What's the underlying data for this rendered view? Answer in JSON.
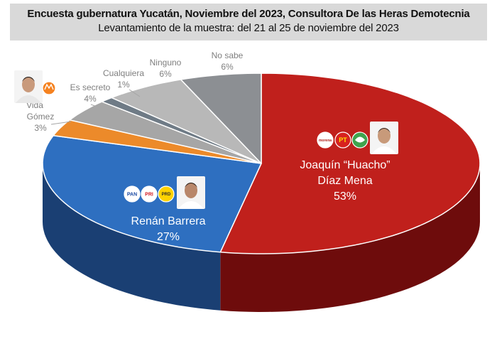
{
  "header": {
    "title": "Encuesta gubernatura Yucatán, Noviembre del 2023, Consultora De las Heras Demotecnia",
    "subtitle": "Levantamiento de la muestra: del 21 al 25 de noviembre del 2023"
  },
  "chart_data": {
    "type": "pie",
    "title": "Encuesta gubernatura Yucatán, Noviembre del 2023, Consultora De las Heras Demotecnia",
    "subtitle": "Levantamiento de la muestra: del 21 al 25 de noviembre del 2023",
    "slices": [
      {
        "label": "Joaquín “Huacho” Díaz Mena",
        "value": 53,
        "display": "53%",
        "color": "#c0201c",
        "side": "#6e0c0c"
      },
      {
        "label": "Renán Barrera",
        "value": 27,
        "display": "27%",
        "color": "#2e6fc0",
        "side": "#1a3f73"
      },
      {
        "label": "Vida Gómez",
        "value": 3,
        "display": "3%",
        "color": "#ec8a2a",
        "side": "#9b5412"
      },
      {
        "label": "Es secreto",
        "value": 4,
        "display": "4%",
        "color": "#a6a6a6",
        "side": "#6a6a6a"
      },
      {
        "label": "Cualquiera",
        "value": 1,
        "display": "1%",
        "color": "#6f7b86",
        "side": "#454d55"
      },
      {
        "label": "Ninguno",
        "value": 6,
        "display": "6%",
        "color": "#b8b8b8",
        "side": "#777777"
      },
      {
        "label": "No sabe",
        "value": 6,
        "display": "6%",
        "color": "#8c8f93",
        "side": "#55585b"
      }
    ],
    "party_logos": {
      "huacho": [
        "morena",
        "PT",
        "PVEM"
      ],
      "renan": [
        "PAN",
        "PRI",
        "PRD"
      ],
      "vida": [
        "MC"
      ]
    }
  }
}
